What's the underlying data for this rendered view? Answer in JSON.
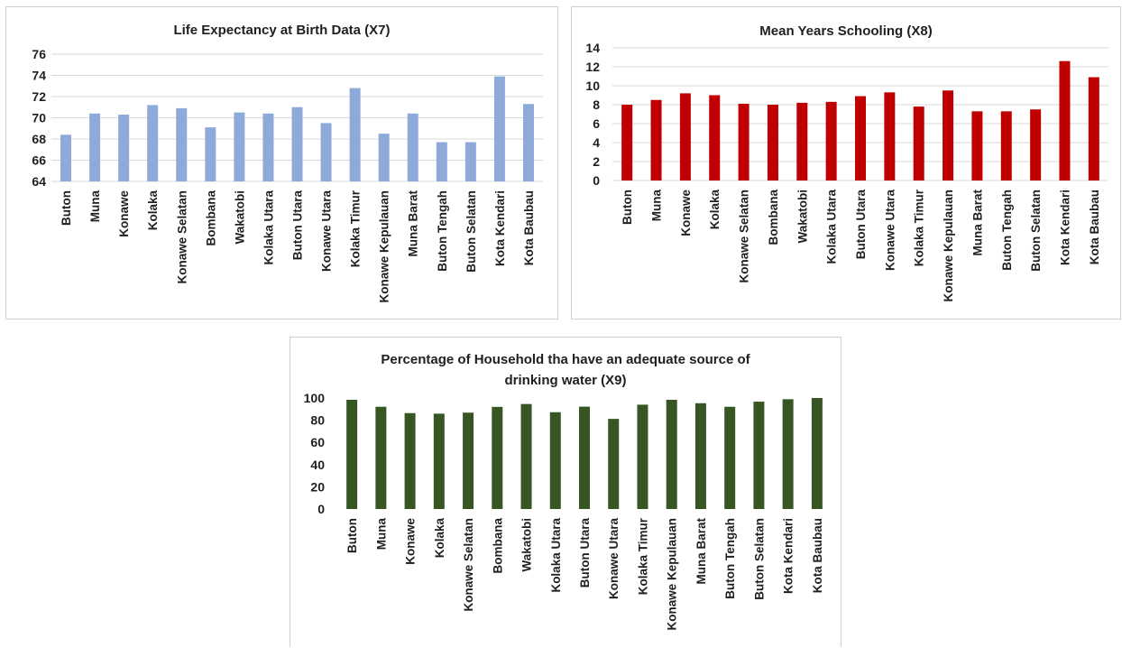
{
  "chart_data": [
    {
      "type": "bar",
      "title": "Life Expectancy at Birth Data (X7)",
      "title_lines": [
        "Life Expectancy at Birth Data (X7)"
      ],
      "categories": [
        "Buton",
        "Muna",
        "Konawe",
        "Kolaka",
        "Konawe Selatan",
        "Bombana",
        "Wakatobi",
        "Kolaka Utara",
        "Buton Utara",
        "Konawe Utara",
        "Kolaka Timur",
        "Konawe Kepulauan",
        "Muna Barat",
        "Buton Tengah",
        "Buton Selatan",
        "Kota Kendari",
        "Kota Baubau"
      ],
      "values": [
        68.4,
        70.4,
        70.3,
        71.2,
        70.9,
        69.1,
        70.5,
        70.4,
        71.0,
        69.5,
        72.8,
        68.5,
        70.4,
        67.7,
        67.7,
        73.9,
        71.3
      ],
      "ylim": [
        64,
        76
      ],
      "yticks": [
        "64",
        "66",
        "68",
        "70",
        "72",
        "74",
        "76"
      ],
      "xlabel": "",
      "ylabel": "",
      "grid": true,
      "legend": "none",
      "color": "#8eaadb"
    },
    {
      "type": "bar",
      "title": "Mean Years Schooling  (X8)",
      "title_lines": [
        "Mean Years Schooling  (X8)"
      ],
      "categories": [
        "Buton",
        "Muna",
        "Konawe",
        "Kolaka",
        "Konawe Selatan",
        "Bombana",
        "Wakatobi",
        "Kolaka Utara",
        "Buton Utara",
        "Konawe Utara",
        "Kolaka Timur",
        "Konawe Kepulauan",
        "Muna Barat",
        "Buton Tengah",
        "Buton Selatan",
        "Kota Kendari",
        "Kota Baubau"
      ],
      "values": [
        8.0,
        8.5,
        9.2,
        9.0,
        8.1,
        8.0,
        8.2,
        8.3,
        8.9,
        9.3,
        7.8,
        9.5,
        7.3,
        7.3,
        7.5,
        12.6,
        10.9
      ],
      "ylim": [
        0,
        14
      ],
      "yticks": [
        "0",
        "2",
        "4",
        "6",
        "8",
        "10",
        "12",
        "14"
      ],
      "xlabel": "",
      "ylabel": "",
      "grid": true,
      "legend": "none",
      "color": "#c00000"
    },
    {
      "type": "bar",
      "title": "Percentage of Household tha have an adequate source of drinking water (X9)",
      "title_lines": [
        "Percentage of Household tha have an adequate source of",
        "drinking water (X9)"
      ],
      "categories": [
        "Buton",
        "Muna",
        "Konawe",
        "Kolaka",
        "Konawe Selatan",
        "Bombana",
        "Wakatobi",
        "Kolaka Utara",
        "Buton Utara",
        "Konawe Utara",
        "Kolaka Timur",
        "Konawe Kepulauan",
        "Muna Barat",
        "Buton Tengah",
        "Buton Selatan",
        "Kota Kendari",
        "Kota Baubau"
      ],
      "values": [
        98.4,
        92.1,
        86.4,
        85.9,
        86.8,
        92.0,
        94.6,
        87.2,
        92.2,
        81.2,
        94.0,
        98.4,
        95.3,
        92.1,
        96.7,
        98.9,
        100.0
      ],
      "ylim": [
        0,
        100
      ],
      "yticks": [
        "0",
        "20",
        "40",
        "60",
        "80",
        "100"
      ],
      "xlabel": "",
      "ylabel": "",
      "grid": false,
      "legend": "none",
      "color": "#375623"
    }
  ]
}
